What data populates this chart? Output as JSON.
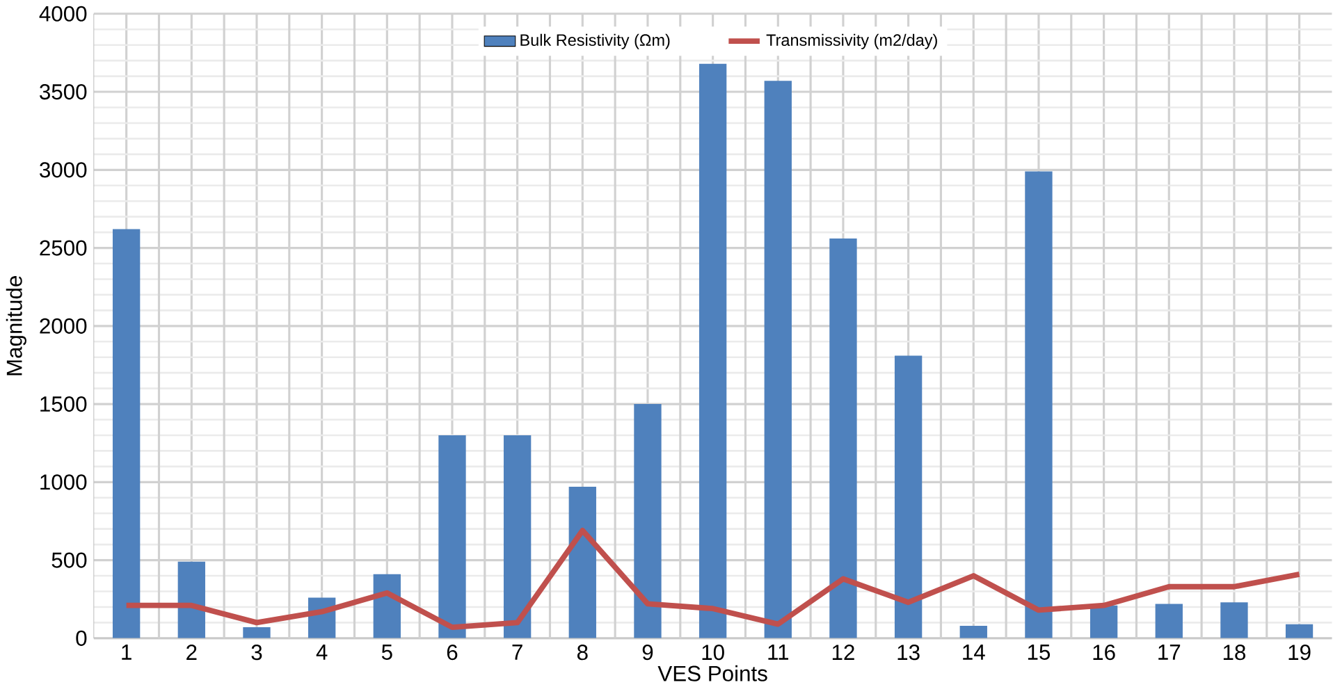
{
  "chart_data": {
    "type": "bar",
    "xlabel": "VES Points",
    "ylabel": "Magnitude",
    "categories": [
      "1",
      "2",
      "3",
      "4",
      "5",
      "6",
      "7",
      "8",
      "9",
      "10",
      "11",
      "12",
      "13",
      "14",
      "15",
      "16",
      "17",
      "18",
      "19"
    ],
    "series": [
      {
        "name": "Bulk Resistivity (Ωm)",
        "color": "#4f81bd",
        "values": [
          2620,
          490,
          70,
          260,
          410,
          1300,
          1300,
          970,
          1500,
          3680,
          3570,
          2560,
          1810,
          80,
          2990,
          210,
          220,
          230,
          90
        ]
      },
      {
        "name": "Transmissivity (m2/day)",
        "type": "line",
        "color": "#c0504d",
        "values": [
          210,
          210,
          100,
          170,
          290,
          70,
          100,
          690,
          220,
          190,
          90,
          380,
          230,
          400,
          180,
          210,
          330,
          330,
          410
        ]
      }
    ],
    "ylim": [
      0,
      4000
    ],
    "yticks": [
      0,
      500,
      1000,
      1500,
      2000,
      2500,
      3000,
      3500,
      4000
    ],
    "grid": true,
    "legend": "top"
  }
}
